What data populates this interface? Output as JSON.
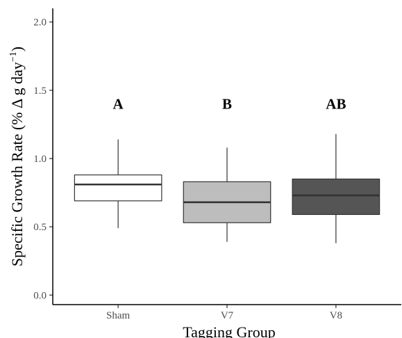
{
  "chart_data": {
    "type": "box",
    "title": "",
    "xlabel": "Tagging Group",
    "ylabel_main": "Specific Growth Rate (% Δ g day",
    "ylabel_exponent": "−1",
    "ylabel_close": ")",
    "ylim": [
      -0.07,
      2.1
    ],
    "yticks": [
      {
        "value": 0.0,
        "label": "0.0"
      },
      {
        "value": 0.5,
        "label": "0.5"
      },
      {
        "value": 1.0,
        "label": "1.0"
      },
      {
        "value": 1.5,
        "label": "1.5"
      },
      {
        "value": 2.0,
        "label": "2.0"
      }
    ],
    "grid": false,
    "categories": [
      "Sham",
      "V7",
      "V8"
    ],
    "boxes": [
      {
        "category": "Sham",
        "min": 0.49,
        "q1": 0.69,
        "median": 0.81,
        "q3": 0.88,
        "max": 1.14,
        "fill": "#ffffff",
        "letter": "A"
      },
      {
        "category": "V7",
        "min": 0.39,
        "q1": 0.53,
        "median": 0.68,
        "q3": 0.83,
        "max": 1.08,
        "fill": "#bdbdbd",
        "letter": "B"
      },
      {
        "category": "V8",
        "min": 0.38,
        "q1": 0.59,
        "median": 0.73,
        "q3": 0.85,
        "max": 1.18,
        "fill": "#555555",
        "letter": "AB"
      }
    ],
    "letter_y": 1.4,
    "colors": {
      "box_stroke": "#333333",
      "axis": "#000000"
    }
  }
}
